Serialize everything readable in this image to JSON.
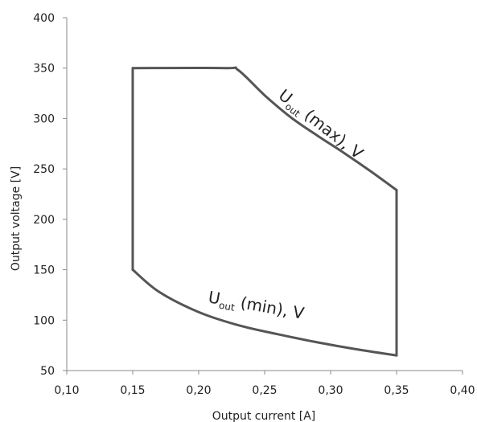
{
  "chart_data": {
    "type": "line",
    "xlabel": "Output current [A]",
    "ylabel": "Output voltage [V]",
    "xlim": [
      0.1,
      0.4
    ],
    "ylim": [
      50,
      400
    ],
    "x_ticks": [
      0.1,
      0.15,
      0.2,
      0.25,
      0.3,
      0.35,
      0.4
    ],
    "x_tick_labels": [
      "0,10",
      "0,15",
      "0,20",
      "0,25",
      "0,30",
      "0,35",
      "0,40"
    ],
    "y_ticks": [
      50,
      100,
      150,
      200,
      250,
      300,
      350,
      400
    ],
    "y_tick_labels": [
      "50",
      "100",
      "150",
      "200",
      "250",
      "300",
      "350",
      "400"
    ],
    "grid": false,
    "line_color": "#555555",
    "series": [
      {
        "name": "U_out (max), V",
        "x": [
          0.15,
          0.22,
          0.23,
          0.25,
          0.27,
          0.29,
          0.31,
          0.33,
          0.35
        ],
        "y": [
          350,
          350,
          348,
          323,
          301,
          283,
          266,
          248,
          229
        ]
      },
      {
        "name": "U_out (min), V",
        "x": [
          0.15,
          0.17,
          0.2,
          0.23,
          0.26,
          0.29,
          0.32,
          0.35
        ],
        "y": [
          150,
          128,
          108,
          95,
          86,
          78,
          71,
          65
        ]
      },
      {
        "name": "",
        "x": [
          0.15,
          0.15
        ],
        "y": [
          150,
          350
        ]
      },
      {
        "name": "",
        "x": [
          0.35,
          0.35
        ],
        "y": [
          65,
          229
        ]
      }
    ],
    "annotations": {
      "max": {
        "main": "U",
        "sub": "out",
        "rest": " (max), V"
      },
      "min": {
        "main": "U",
        "sub": "out",
        "rest": " (min), V"
      }
    }
  }
}
